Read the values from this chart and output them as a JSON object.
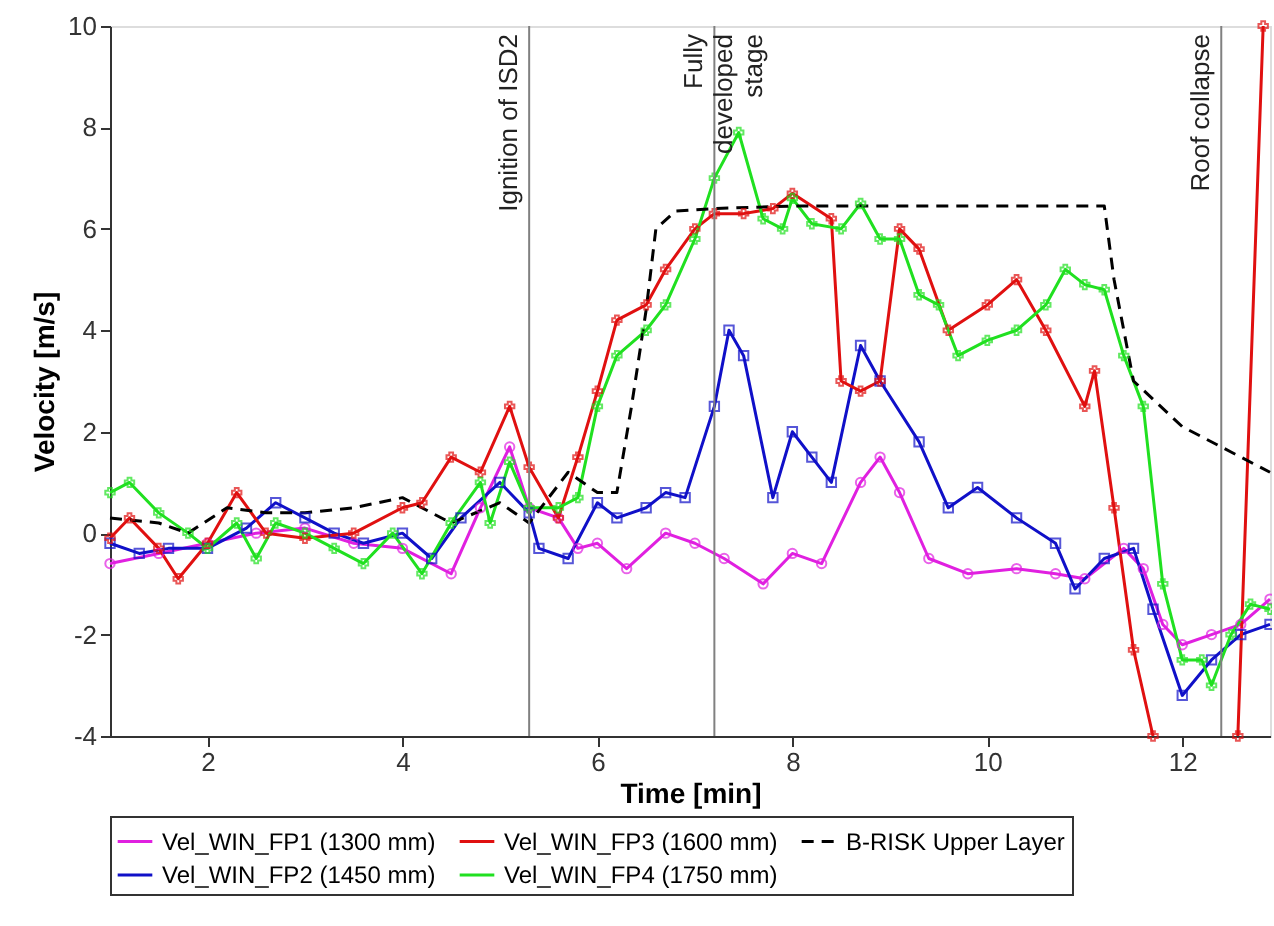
{
  "chart_data": {
    "type": "line",
    "xlabel": "Time [min]",
    "ylabel": "Velocity [m/s]",
    "xlim": [
      1,
      12.9
    ],
    "xticks": [
      2,
      4,
      6,
      8,
      10,
      12
    ],
    "ylim": [
      -4,
      10
    ],
    "yticks": [
      -4,
      -2,
      0,
      2,
      4,
      6,
      8,
      10
    ],
    "grid": false,
    "legend": "bottom",
    "ref_lines": [
      {
        "axis": "x",
        "value": 5.3,
        "label": "Ignition of ISD2",
        "color": "#808080"
      },
      {
        "axis": "x",
        "value": 7.2,
        "label": "Fully\ndeveloped\nstage",
        "color": "#808080"
      },
      {
        "axis": "x",
        "value": 12.4,
        "label": "Roof collapse",
        "color": "#808080"
      }
    ],
    "series": [
      {
        "name": "Vel_WIN_FP1 (1300 mm)",
        "color": "#e020e0",
        "marker": "circle",
        "line_style": "solid",
        "x": [
          1,
          1.5,
          2,
          2.5,
          3,
          3.5,
          4,
          4.5,
          4.8,
          5.1,
          5.3,
          5.6,
          5.8,
          6.0,
          6.3,
          6.7,
          7.0,
          7.3,
          7.7,
          8.0,
          8.3,
          8.7,
          8.9,
          9.1,
          9.4,
          9.8,
          10.3,
          10.7,
          11.0,
          11.4,
          11.6,
          11.8,
          12.0,
          12.3,
          12.6,
          12.9
        ],
        "values": [
          -0.6,
          -0.4,
          -0.2,
          0.0,
          0.1,
          -0.2,
          -0.3,
          -0.8,
          0.5,
          1.7,
          0.5,
          0.3,
          -0.3,
          -0.2,
          -0.7,
          0.0,
          -0.2,
          -0.5,
          -1.0,
          -0.4,
          -0.6,
          1.0,
          1.5,
          0.8,
          -0.5,
          -0.8,
          -0.7,
          -0.8,
          -0.9,
          -0.3,
          -0.7,
          -1.8,
          -2.2,
          -2.0,
          -1.8,
          -1.3
        ]
      },
      {
        "name": "Vel_WIN_FP2 (1450 mm)",
        "color": "#1010c8",
        "marker": "square",
        "line_style": "solid",
        "x": [
          1,
          1.3,
          1.6,
          2,
          2.4,
          2.7,
          3,
          3.3,
          3.6,
          4,
          4.3,
          4.6,
          5.0,
          5.3,
          5.4,
          5.7,
          6.0,
          6.2,
          6.5,
          6.7,
          6.9,
          7.2,
          7.35,
          7.5,
          7.8,
          8.0,
          8.2,
          8.4,
          8.7,
          8.9,
          9.3,
          9.6,
          9.9,
          10.3,
          10.7,
          10.9,
          11.2,
          11.5,
          11.7,
          12.0,
          12.3,
          12.6,
          12.9
        ],
        "values": [
          -0.2,
          -0.4,
          -0.3,
          -0.3,
          0.1,
          0.6,
          0.3,
          0.0,
          -0.2,
          0.0,
          -0.5,
          0.3,
          1.0,
          0.4,
          -0.3,
          -0.5,
          0.6,
          0.3,
          0.5,
          0.8,
          0.7,
          2.5,
          4.0,
          3.5,
          0.7,
          2.0,
          1.5,
          1.0,
          3.7,
          3.0,
          1.8,
          0.5,
          0.9,
          0.3,
          -0.2,
          -1.1,
          -0.5,
          -0.3,
          -1.5,
          -3.2,
          -2.5,
          -2.0,
          -1.8
        ]
      },
      {
        "name": "Vel_WIN_FP3 (1600 mm)",
        "color": "#e01010",
        "marker": "cross",
        "line_style": "solid",
        "x": [
          1,
          1.2,
          1.5,
          1.7,
          2,
          2.3,
          2.6,
          3,
          3.5,
          4,
          4.2,
          4.5,
          4.8,
          5.1,
          5.3,
          5.6,
          5.8,
          6.0,
          6.2,
          6.5,
          6.7,
          7.0,
          7.2,
          7.5,
          7.8,
          8.0,
          8.4,
          8.5,
          8.7,
          8.9,
          9.1,
          9.3,
          9.6,
          10.0,
          10.3,
          10.6,
          11.0,
          11.1,
          11.3,
          11.5,
          11.7,
          12.0,
          12.57,
          12.83
        ],
        "values": [
          -0.1,
          0.3,
          -0.3,
          -0.9,
          -0.2,
          0.8,
          0.0,
          -0.1,
          0.0,
          0.5,
          0.6,
          1.5,
          1.2,
          2.5,
          1.3,
          0.3,
          1.5,
          2.8,
          4.2,
          4.5,
          5.2,
          6.0,
          6.3,
          6.3,
          6.4,
          6.7,
          6.2,
          3.0,
          2.8,
          3.0,
          6.0,
          5.6,
          4.0,
          4.5,
          5.0,
          4.0,
          2.5,
          3.2,
          0.5,
          -2.3,
          -4.0,
          null,
          -4.0,
          10.0
        ]
      },
      {
        "name": "Vel_WIN_FP4 (1750 mm)",
        "color": "#20e020",
        "marker": "cross",
        "line_style": "solid",
        "x": [
          1,
          1.2,
          1.5,
          1.8,
          2,
          2.3,
          2.5,
          2.7,
          3,
          3.3,
          3.6,
          3.9,
          4.2,
          4.5,
          4.8,
          4.9,
          5.1,
          5.3,
          5.6,
          5.8,
          6.0,
          6.2,
          6.5,
          6.7,
          7.0,
          7.2,
          7.45,
          7.7,
          7.9,
          8.0,
          8.2,
          8.5,
          8.7,
          8.9,
          9.1,
          9.3,
          9.5,
          9.7,
          10.0,
          10.3,
          10.6,
          10.8,
          11.0,
          11.2,
          11.4,
          11.6,
          11.8,
          12.0,
          12.2,
          12.3,
          12.5,
          12.7,
          12.9
        ],
        "values": [
          0.8,
          1.0,
          0.4,
          0.0,
          -0.3,
          0.2,
          -0.5,
          0.2,
          0.0,
          -0.3,
          -0.6,
          0.0,
          -0.8,
          0.2,
          1.0,
          0.2,
          1.4,
          0.5,
          0.5,
          0.7,
          2.5,
          3.5,
          4.0,
          4.5,
          5.8,
          7.0,
          7.9,
          6.2,
          6.0,
          6.6,
          6.1,
          6.0,
          6.5,
          5.8,
          5.8,
          4.7,
          4.5,
          3.5,
          3.8,
          4.0,
          4.5,
          5.2,
          4.9,
          4.8,
          3.5,
          2.5,
          -1.0,
          -2.5,
          -2.5,
          -3.0,
          -2.0,
          -1.4,
          -1.5
        ]
      },
      {
        "name": "B-RISK Upper Layer",
        "color": "#000000",
        "marker": "none",
        "line_style": "dashed",
        "x": [
          1,
          1.5,
          1.8,
          2.2,
          2.6,
          3,
          3.5,
          4,
          4.5,
          5,
          5.3,
          5.7,
          6.0,
          6.2,
          6.35,
          6.5,
          6.6,
          6.8,
          7.2,
          8,
          9,
          10,
          11.2,
          11.3,
          11.5,
          12,
          12.5,
          12.9
        ],
        "values": [
          0.3,
          0.2,
          0.0,
          0.5,
          0.4,
          0.4,
          0.5,
          0.7,
          0.2,
          0.6,
          0.2,
          1.2,
          0.8,
          0.8,
          2.5,
          4.4,
          6.0,
          6.35,
          6.4,
          6.45,
          6.45,
          6.45,
          6.45,
          5.0,
          3.0,
          2.1,
          1.6,
          1.2
        ]
      }
    ]
  }
}
